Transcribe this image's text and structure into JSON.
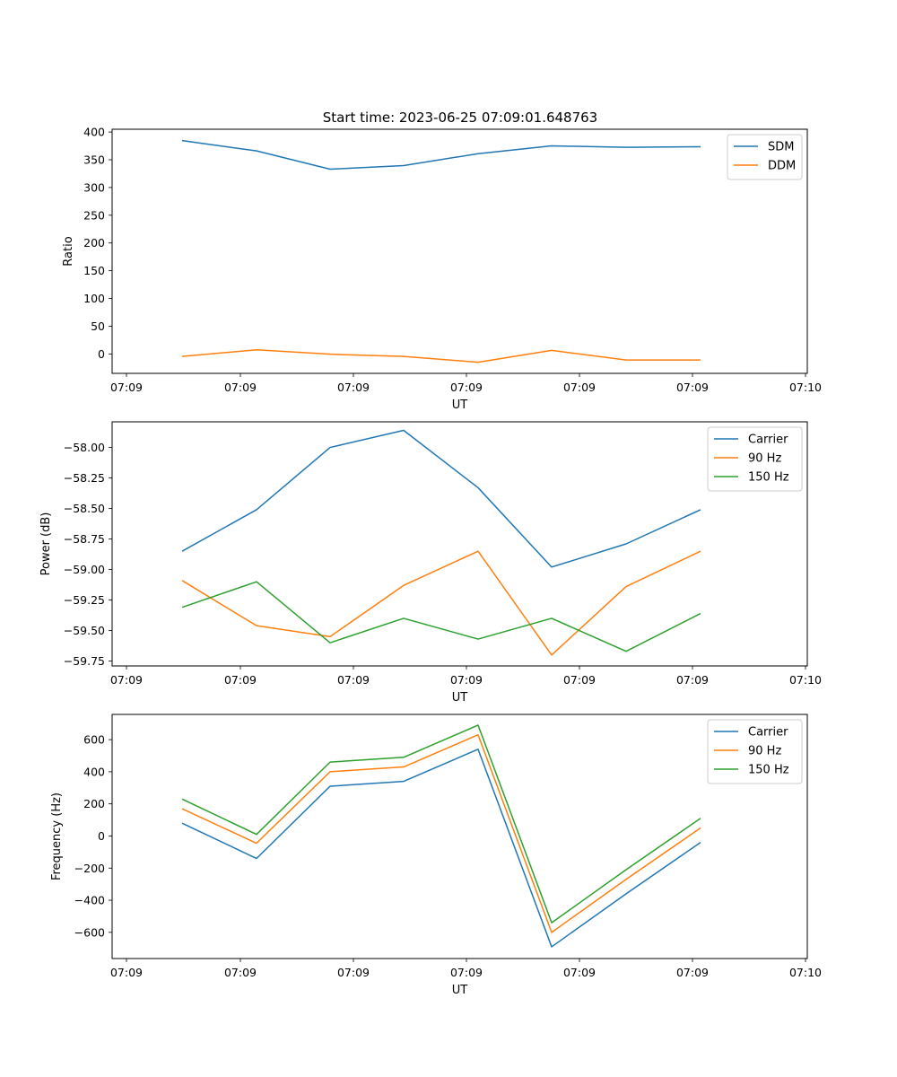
{
  "title": "Start time: 2023-06-25 07:09:01.648763",
  "colors": {
    "blue": "#1f77b4",
    "orange": "#ff7f0e",
    "green": "#2ca02c"
  },
  "chart_data": [
    {
      "type": "line",
      "xlabel": "UT",
      "ylabel": "Ratio",
      "x_tick_labels": [
        "07:09",
        "07:09",
        "07:09",
        "07:09",
        "07:09",
        "07:09",
        "07:10"
      ],
      "y_ticks": [
        0,
        50,
        100,
        150,
        200,
        250,
        300,
        350,
        400
      ],
      "y_tick_labels": [
        "0",
        "50",
        "100",
        "150",
        "200",
        "250",
        "300",
        "350",
        "400"
      ],
      "ylim": [
        -35,
        405
      ],
      "legend_position": "upper right",
      "grid": false,
      "series": [
        {
          "name": "SDM",
          "color": "#1f77b4",
          "values": [
            384.5,
            366,
            333,
            339.5,
            361,
            375,
            372.5,
            373.5
          ]
        },
        {
          "name": "DDM",
          "color": "#ff7f0e",
          "values": [
            -4.5,
            7.5,
            -0.5,
            -4.5,
            -15,
            6.5,
            -11,
            -11
          ]
        }
      ]
    },
    {
      "type": "line",
      "xlabel": "UT",
      "ylabel": "Power (dB)",
      "x_tick_labels": [
        "07:09",
        "07:09",
        "07:09",
        "07:09",
        "07:09",
        "07:09",
        "07:10"
      ],
      "y_ticks": [
        -59.75,
        -59.5,
        -59.25,
        -59.0,
        -58.75,
        -58.5,
        -58.25,
        -58.0
      ],
      "y_tick_labels": [
        "−59.75",
        "−59.50",
        "−59.25",
        "−59.00",
        "−58.75",
        "−58.50",
        "−58.25",
        "−58.00"
      ],
      "ylim": [
        -59.79,
        -57.79
      ],
      "legend_position": "upper right",
      "grid": false,
      "series": [
        {
          "name": "Carrier",
          "color": "#1f77b4",
          "values": [
            -58.85,
            -58.51,
            -58.0,
            -57.86,
            -58.33,
            -58.98,
            -58.79,
            -58.51
          ]
        },
        {
          "name": "90 Hz",
          "color": "#ff7f0e",
          "values": [
            -59.09,
            -59.46,
            -59.55,
            -59.13,
            -58.85,
            -59.7,
            -59.14,
            -58.85
          ]
        },
        {
          "name": "150 Hz",
          "color": "#2ca02c",
          "values": [
            -59.31,
            -59.1,
            -59.6,
            -59.4,
            -59.57,
            -59.4,
            -59.67,
            -59.36
          ]
        }
      ]
    },
    {
      "type": "line",
      "xlabel": "UT",
      "ylabel": "Frequency (Hz)",
      "x_tick_labels": [
        "07:09",
        "07:09",
        "07:09",
        "07:09",
        "07:09",
        "07:09",
        "07:10"
      ],
      "y_ticks": [
        -600,
        -400,
        -200,
        0,
        200,
        400,
        600
      ],
      "y_tick_labels": [
        "−600",
        "−400",
        "−200",
        "0",
        "200",
        "400",
        "600"
      ],
      "ylim": [
        -763,
        757
      ],
      "legend_position": "upper right",
      "grid": false,
      "series": [
        {
          "name": "Carrier",
          "color": "#1f77b4",
          "values": [
            80,
            -140,
            310,
            340,
            540,
            -690,
            -360,
            -40
          ]
        },
        {
          "name": "90 Hz",
          "color": "#ff7f0e",
          "values": [
            170,
            -45,
            400,
            430,
            630,
            -600,
            -270,
            50
          ]
        },
        {
          "name": "150 Hz",
          "color": "#2ca02c",
          "values": [
            230,
            10,
            460,
            490,
            690,
            -540,
            -210,
            110
          ]
        }
      ]
    }
  ]
}
